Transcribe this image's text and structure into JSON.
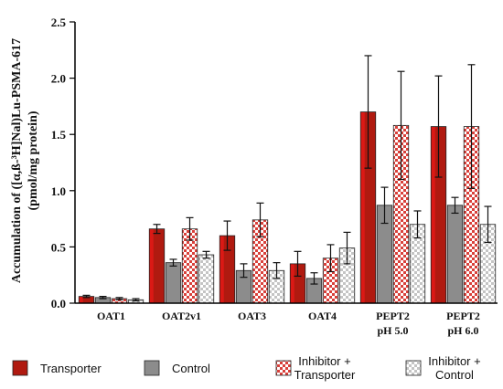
{
  "chart_data": {
    "type": "bar",
    "ylabel_line1": "Accumulation of ([α,ß-³H]Nal)Lu-PSMA-617",
    "ylabel_line2": "(pmol/mg protein)",
    "ylim": [
      0,
      2.5
    ],
    "yticks": [
      "0.0",
      "0.5",
      "1.0",
      "1.5",
      "2.0",
      "2.5"
    ],
    "ytick_values": [
      0,
      0.5,
      1.0,
      1.5,
      2.0,
      2.5
    ],
    "categories": [
      {
        "line1": "OAT1",
        "line2": ""
      },
      {
        "line1": "OAT2v1",
        "line2": ""
      },
      {
        "line1": "OAT3",
        "line2": ""
      },
      {
        "line1": "OAT4",
        "line2": ""
      },
      {
        "line1": "PEPT2",
        "line2": "pH 5.0"
      },
      {
        "line1": "PEPT2",
        "line2": "pH 6.0"
      }
    ],
    "series": [
      {
        "name": "Transporter",
        "values": [
          0.06,
          0.66,
          0.6,
          0.35,
          1.7,
          1.57
        ],
        "errors": [
          0.01,
          0.04,
          0.13,
          0.11,
          0.5,
          0.45
        ]
      },
      {
        "name": "Control",
        "values": [
          0.05,
          0.36,
          0.29,
          0.22,
          0.87,
          0.87
        ],
        "errors": [
          0.01,
          0.03,
          0.06,
          0.05,
          0.16,
          0.07
        ]
      },
      {
        "name": "Inhibitor + Transporter",
        "values": [
          0.04,
          0.66,
          0.74,
          0.4,
          1.58,
          1.57
        ],
        "errors": [
          0.01,
          0.1,
          0.15,
          0.12,
          0.48,
          0.55
        ]
      },
      {
        "name": "Inhibitor + Control",
        "values": [
          0.03,
          0.43,
          0.29,
          0.49,
          0.7,
          0.7
        ],
        "errors": [
          0.01,
          0.03,
          0.07,
          0.14,
          0.12,
          0.16
        ]
      }
    ],
    "legend": [
      {
        "line1": "Transporter",
        "line2": ""
      },
      {
        "line1": "Control",
        "line2": ""
      },
      {
        "line1": "Inhibitor +",
        "line2": "Transporter"
      },
      {
        "line1": "Inhibitor +",
        "line2": "Control"
      }
    ],
    "colors": {
      "transporter": "#b01a10",
      "transporter_highlight": "#ff1a1a",
      "control": "#8c8c8c",
      "inhibitor_transporter": "#d9403a",
      "inhibitor_control": "#c8c8c8"
    }
  }
}
